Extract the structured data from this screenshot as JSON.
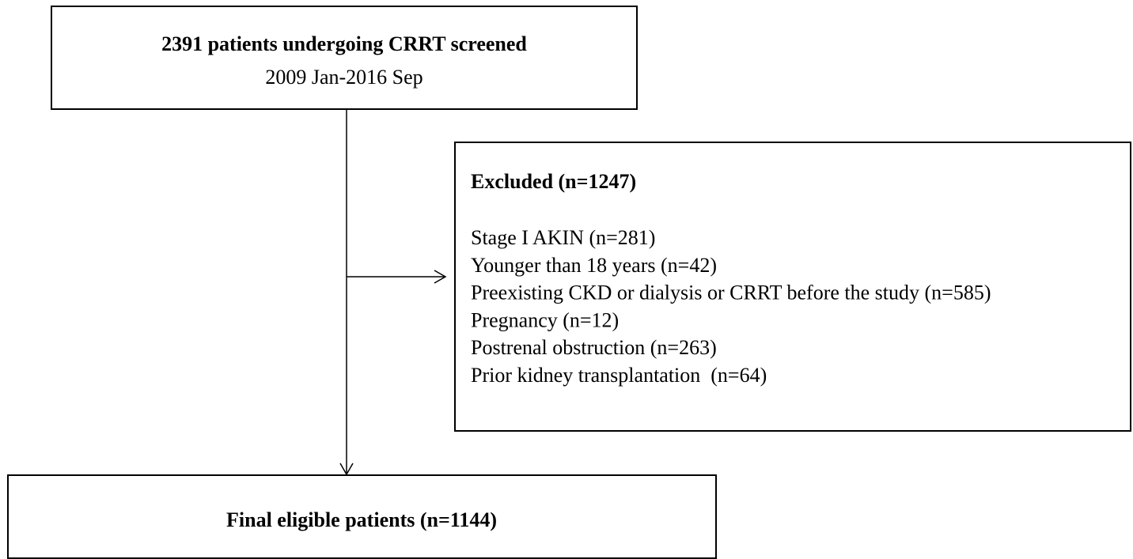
{
  "nodes": [
    {
      "title": "2391 patients undergoing CRRT screened",
      "subtitle": "2009 Jan-2016 Sep"
    },
    {
      "title": "Excluded (n=1247)",
      "items": [
        "Stage I AKIN (n=281)",
        "Younger than 18 years (n=42)",
        "Preexisting CKD or dialysis or CRRT before the study (n=585)",
        "Pregnancy (n=12)",
        "Postrenal obstruction (n=263)",
        "Prior kidney transplantation  (n=64)"
      ]
    },
    {
      "title": "Final eligible patients (n=1144)"
    }
  ]
}
